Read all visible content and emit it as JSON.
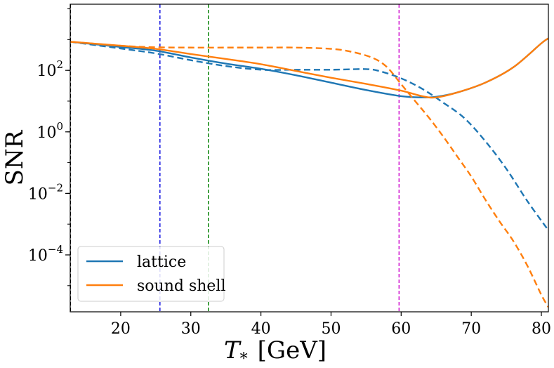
{
  "chart_data": {
    "type": "line",
    "title": "",
    "xlabel": "T_* [GeV]",
    "xlabel_main": "T",
    "xlabel_sub": "*",
    "xlabel_unit": "[GeV]",
    "ylabel": "SNR",
    "yscale": "log",
    "xlim": [
      12.8,
      81
    ],
    "ylim_log10": [
      -5.85,
      4.15
    ],
    "x_ticks": [
      20,
      30,
      40,
      50,
      60,
      70,
      80
    ],
    "x_tick_labels": [
      "20",
      "30",
      "40",
      "50",
      "60",
      "70",
      "80"
    ],
    "y_ticks_log10": [
      -4,
      -2,
      0,
      2
    ],
    "y_tick_labels": [
      "10",
      "10",
      "10",
      "10"
    ],
    "y_tick_exponents": [
      "−4",
      "−2",
      "0",
      "2"
    ],
    "grid": false,
    "legend": {
      "placement": "lower-left",
      "entries": [
        "lattice",
        "sound shell"
      ]
    },
    "colors": {
      "lattice": "#1f77b4",
      "sound_shell": "#ff7f0e"
    },
    "vlines": [
      {
        "x": 12.8,
        "color": "#000000"
      },
      {
        "x": 25.6,
        "color": "#0000dd"
      },
      {
        "x": 32.5,
        "color": "#008000"
      },
      {
        "x": 59.7,
        "color": "#cc00cc"
      }
    ],
    "series": [
      {
        "name": "lattice",
        "style": "solid",
        "color": "#1f77b4",
        "x": [
          12.8,
          20,
          25,
          30,
          35,
          40,
          45,
          50,
          55,
          60,
          63,
          65,
          68,
          72,
          76,
          80,
          81
        ],
        "log10": [
          2.93,
          2.76,
          2.64,
          2.42,
          2.22,
          2.05,
          1.84,
          1.6,
          1.36,
          1.16,
          1.12,
          1.14,
          1.28,
          1.6,
          2.1,
          2.88,
          3.04
        ]
      },
      {
        "name": "lattice",
        "style": "dashed",
        "color": "#1f77b4",
        "x": [
          12.8,
          20,
          25,
          30,
          35,
          40,
          45,
          50,
          55,
          57,
          60,
          63,
          66,
          69,
          72,
          75,
          78,
          81
        ],
        "log10": [
          2.93,
          2.71,
          2.55,
          2.33,
          2.14,
          2.02,
          2.02,
          2.02,
          2.04,
          1.97,
          1.74,
          1.4,
          0.95,
          0.45,
          -0.3,
          -1.2,
          -2.25,
          -3.2
        ]
      },
      {
        "name": "sound shell",
        "style": "solid",
        "color": "#ff7f0e",
        "x": [
          12.8,
          20,
          25,
          30,
          35,
          40,
          45,
          50,
          55,
          60,
          63,
          65,
          68,
          72,
          76,
          80,
          81
        ],
        "log10": [
          2.93,
          2.8,
          2.7,
          2.53,
          2.37,
          2.2,
          1.98,
          1.76,
          1.56,
          1.34,
          1.16,
          1.12,
          1.28,
          1.6,
          2.1,
          2.88,
          3.04
        ]
      },
      {
        "name": "sound shell",
        "style": "dashed",
        "color": "#ff7f0e",
        "x": [
          12.8,
          20,
          25,
          30,
          35,
          40,
          45,
          50,
          53,
          56,
          58,
          60,
          62,
          64,
          66,
          68,
          70,
          72,
          74,
          76,
          78,
          80,
          81
        ],
        "log10": [
          2.93,
          2.8,
          2.75,
          2.74,
          2.74,
          2.74,
          2.74,
          2.7,
          2.6,
          2.4,
          2.1,
          1.55,
          1.0,
          0.45,
          -0.15,
          -0.8,
          -1.45,
          -2.2,
          -2.9,
          -3.55,
          -4.35,
          -5.3,
          -5.7
        ]
      }
    ]
  }
}
